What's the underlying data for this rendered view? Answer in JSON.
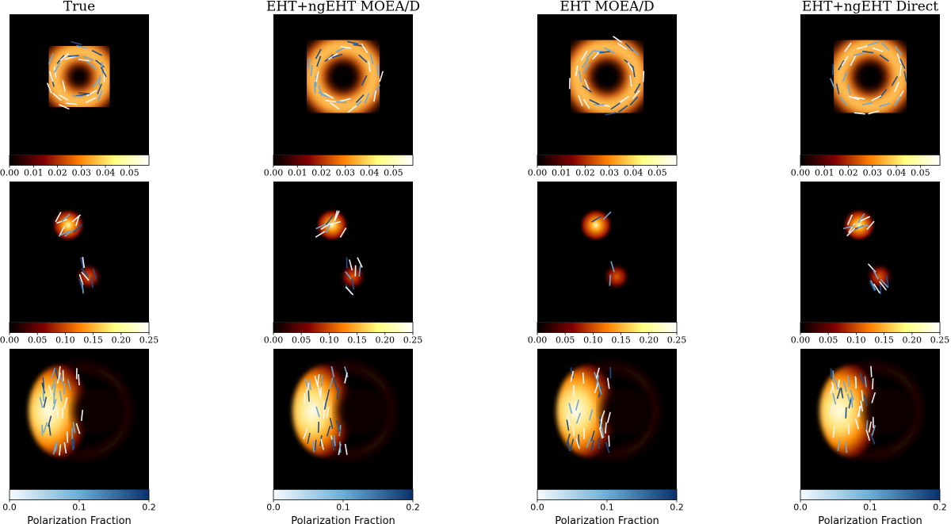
{
  "titles": [
    "True",
    "EHT+ngEHT MOEA/D",
    "EHT MOEA/D",
    "EHT+ngEHT Direct"
  ],
  "rows": [
    {
      "colorbar_ticks": [
        "0.00",
        "0.01",
        "0.02",
        "0.03",
        "0.04",
        "0.05"
      ]
    },
    {
      "colorbar_ticks": [
        "0.00",
        "0.05",
        "0.10",
        "0.15",
        "0.20",
        "0.25"
      ]
    },
    {
      "colorbar_ticks": [
        "0.0",
        "0.1",
        "0.2"
      ],
      "colorbar_label": "Polarization Fraction"
    }
  ]
}
